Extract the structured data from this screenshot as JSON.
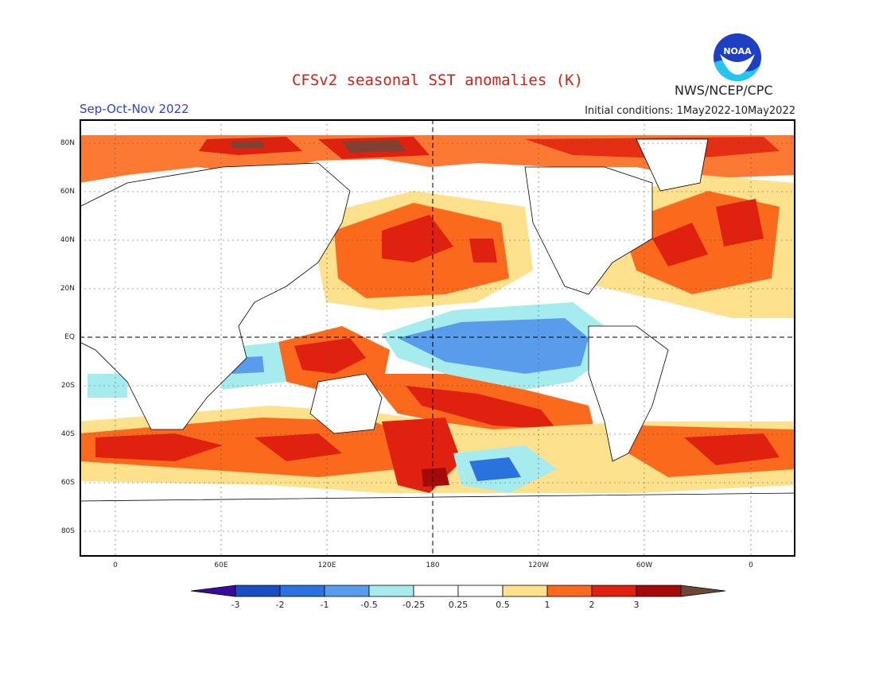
{
  "header": {
    "title": "CFSv2 seasonal SST anomalies (K)",
    "season": "Sep-Oct-Nov 2022",
    "initial_conditions": "Initial conditions: 1May2022-10May2022",
    "agency": "NWS/NCEP/CPC",
    "logo_text": "NOAA"
  },
  "colors": {
    "title": "#d21f12",
    "season": "#2b44d8",
    "text": "#222222",
    "scale": [
      "#3a0a9c",
      "#1a4fc4",
      "#2a72dd",
      "#5a9cec",
      "#a6ecee",
      "#ffffff",
      "#ffffff",
      "#fde18d",
      "#fb6a1c",
      "#e0210f",
      "#a50a0a",
      "#6e4638"
    ]
  },
  "map": {
    "latitude_labels": [
      "80N",
      "60N",
      "40N",
      "20N",
      "EQ",
      "20S",
      "40S",
      "60S",
      "80S"
    ],
    "longitude_labels": [
      "0",
      "60E",
      "120E",
      "180",
      "120W",
      "60W",
      "0"
    ]
  },
  "colorbar": {
    "labels": [
      "-3",
      "-2",
      "-1",
      "-0.5",
      "-0.25",
      "0.25",
      "0.5",
      "1",
      "2",
      "3"
    ]
  }
}
